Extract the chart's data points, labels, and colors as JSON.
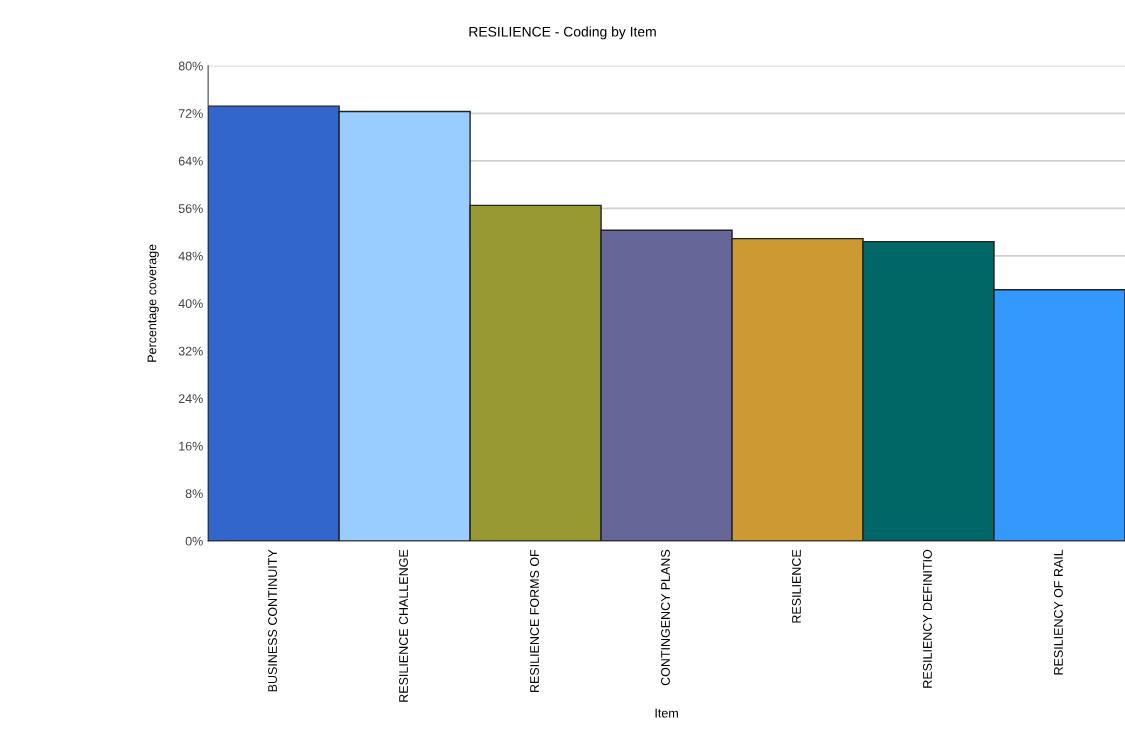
{
  "chart_data": {
    "type": "bar",
    "title": "RESILIENCE - Coding by Item",
    "xlabel": "Item",
    "ylabel": "Percentage coverage",
    "categories": [
      "BUSINESS CONTINUITY",
      "RESILIENCE CHALLENGE",
      "RESILIENCE FORMS OF",
      "CONTINGENCY PLANS",
      "RESILIENCE",
      "RESILIENCY DEFINITIO",
      "RESILIENCY OF RAIL"
    ],
    "values": [
      73.2,
      72.3,
      56.5,
      52.3,
      50.9,
      50.4,
      42.3
    ],
    "colors": [
      "#3366cc",
      "#99ccff",
      "#999933",
      "#666699",
      "#cc9933",
      "#006666",
      "#3399ff"
    ],
    "ylim": [
      0,
      80
    ],
    "yticks": [
      {
        "value": 0,
        "label": "0%"
      },
      {
        "value": 8,
        "label": "8%"
      },
      {
        "value": 16,
        "label": "16%"
      },
      {
        "value": 24,
        "label": "24%"
      },
      {
        "value": 32,
        "label": "32%"
      },
      {
        "value": 40,
        "label": "40%"
      },
      {
        "value": 48,
        "label": "48%"
      },
      {
        "value": 56,
        "label": "56%"
      },
      {
        "value": 64,
        "label": "64%"
      },
      {
        "value": 72,
        "label": "72%"
      },
      {
        "value": 80,
        "label": "80%"
      }
    ],
    "grid": "y",
    "legend": false
  }
}
